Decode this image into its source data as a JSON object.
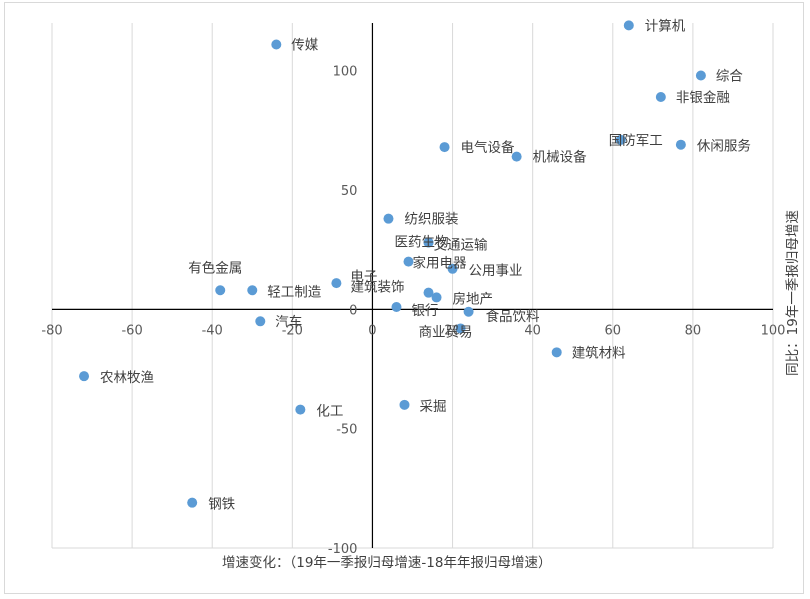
{
  "chart_data": {
    "type": "scatter",
    "xlabel": "增速变化：（19年一季报归母增速-18年年报归母增速）",
    "ylabel": "同比：19年一季报归母增速",
    "xlim": [
      -80,
      100
    ],
    "ylim": [
      -100,
      120
    ],
    "xticks": [
      -80,
      -60,
      -40,
      -20,
      0,
      20,
      40,
      60,
      80,
      100
    ],
    "yticks": [
      -100,
      -50,
      0,
      50,
      100
    ],
    "grid": "vertical",
    "point_color": "#5b9bd5",
    "points": [
      {
        "name": "计算机",
        "x": 64,
        "y": 119
      },
      {
        "name": "传媒",
        "x": -24,
        "y": 111
      },
      {
        "name": "综合",
        "x": 82,
        "y": 98
      },
      {
        "name": "非银金融",
        "x": 72,
        "y": 89
      },
      {
        "name": "国防军工",
        "x": 62,
        "y": 71
      },
      {
        "name": "休闲服务",
        "x": 77,
        "y": 69
      },
      {
        "name": "电气设备",
        "x": 18,
        "y": 68
      },
      {
        "name": "机械设备",
        "x": 36,
        "y": 64
      },
      {
        "name": "纺织服装",
        "x": 4,
        "y": 38
      },
      {
        "name": "医药生物",
        "x": 14,
        "y": 28
      },
      {
        "name": "交通运输",
        "x": 14,
        "y": 28
      },
      {
        "name": "家用电器",
        "x": 9,
        "y": 20
      },
      {
        "name": "公用事业",
        "x": 20,
        "y": 17
      },
      {
        "name": "有色金属",
        "x": -38,
        "y": 8
      },
      {
        "name": "轻工制造",
        "x": -30,
        "y": 8
      },
      {
        "name": "电子",
        "x": -9,
        "y": 11
      },
      {
        "name": "建筑装饰",
        "x": 14,
        "y": 7
      },
      {
        "name": "房地产",
        "x": 16,
        "y": 5
      },
      {
        "name": "银行",
        "x": 6,
        "y": 1
      },
      {
        "name": "食品饮料",
        "x": 24,
        "y": -1
      },
      {
        "name": "汽车",
        "x": -28,
        "y": -5
      },
      {
        "name": "商业贸易",
        "x": 22,
        "y": -8
      },
      {
        "name": "建筑材料",
        "x": 46,
        "y": -18
      },
      {
        "name": "农林牧渔",
        "x": -72,
        "y": -28
      },
      {
        "name": "采掘",
        "x": 8,
        "y": -40
      },
      {
        "name": "化工",
        "x": -18,
        "y": -42
      },
      {
        "name": "钢铁",
        "x": -45,
        "y": -81
      }
    ]
  }
}
